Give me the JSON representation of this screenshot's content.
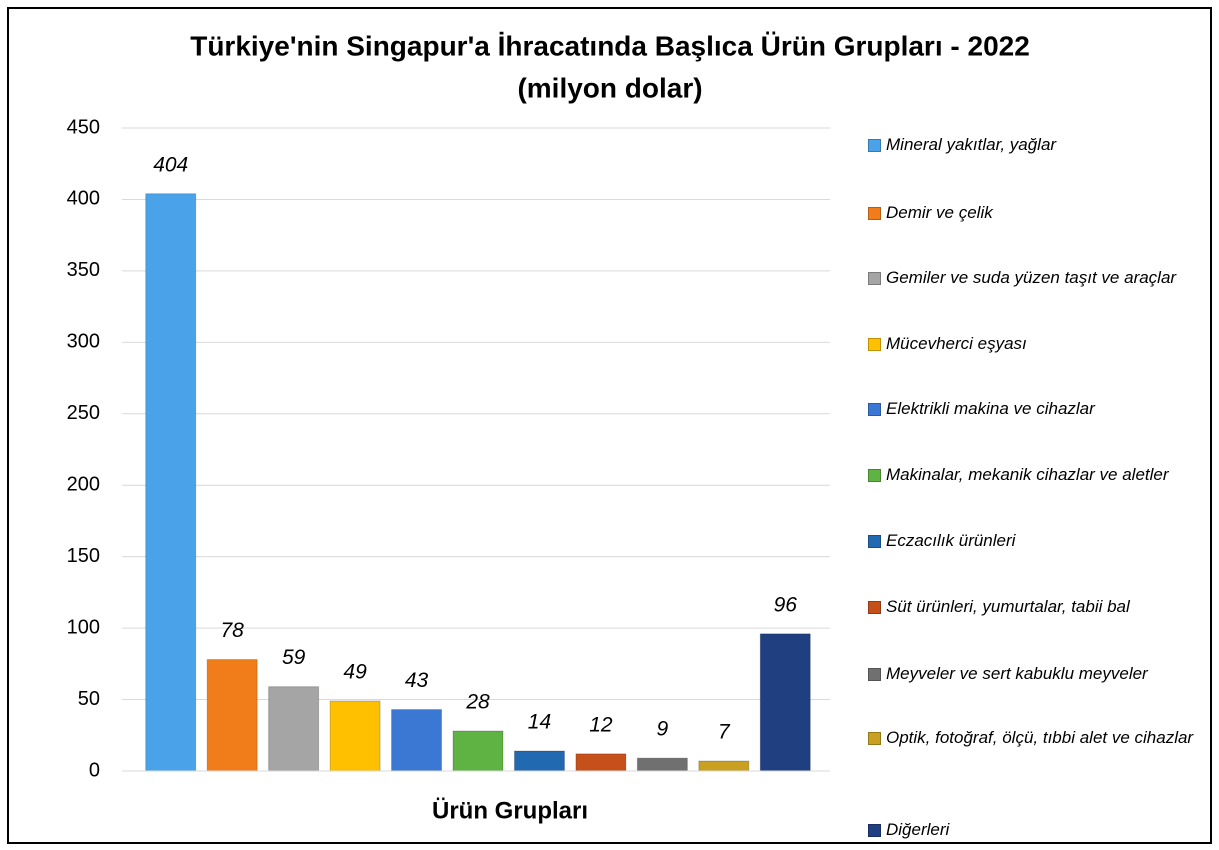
{
  "chart_data": {
    "type": "bar",
    "title": "Türkiye'nin Singapur'a İhracatında Başlıca Ürün Grupları - 2022",
    "subtitle": "(milyon dolar)",
    "x_label": "Ürün Grupları",
    "categories": [
      "Mineral yakıtlar, yağlar",
      "Demir ve çelik",
      "Gemiler ve suda yüzen taşıt ve araçlar",
      "Mücevherci eşyası",
      "Elektrikli makina ve cihazlar",
      "Makinalar, mekanik cihazlar ve aletler",
      "Eczacılık ürünleri",
      "Süt ürünleri, yumurtalar, tabii bal",
      "Meyveler ve sert kabuklu meyveler",
      "Optik, fotoğraf, ölçü, tıbbi alet ve cihazlar",
      "Diğerleri"
    ],
    "values": [
      404,
      78,
      59,
      49,
      43,
      28,
      14,
      12,
      9,
      7,
      96
    ],
    "colors": [
      "#4aa3e8",
      "#f07d1a",
      "#a5a5a5",
      "#ffc000",
      "#3a78d4",
      "#5fb342",
      "#2169b0",
      "#c5501a",
      "#707070",
      "#c9a020",
      "#1f3f80"
    ],
    "ylim": [
      0,
      450
    ],
    "yticks": [
      0,
      50,
      100,
      150,
      200,
      250,
      300,
      350,
      400,
      450
    ],
    "grid": true,
    "legend": "right"
  }
}
